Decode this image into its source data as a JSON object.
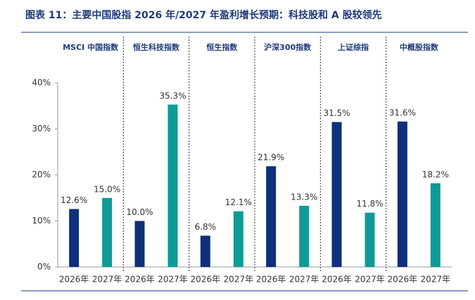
{
  "chart_data": {
    "type": "bar",
    "title": "图表 11：主要中国股指 2026 年/2027 年盈利增长预期：科技股和 A 股较领先",
    "categories": [
      "MSCI 中国指数",
      "恒生科技指数",
      "恒生指数",
      "沪深300指数",
      "上证综指",
      "中概股指数"
    ],
    "series": [
      {
        "name": "2026年",
        "color": "#102f7b",
        "values": [
          12.6,
          10.0,
          6.8,
          21.9,
          31.5,
          31.6
        ],
        "value_labels": [
          "12.6%",
          "10.0%",
          "6.8%",
          "21.9%",
          "31.5%",
          "31.6%"
        ]
      },
      {
        "name": "2027年",
        "color": "#0e9b97",
        "values": [
          15.0,
          35.3,
          12.1,
          13.3,
          11.8,
          18.2
        ],
        "value_labels": [
          "15.0%",
          "35.3%",
          "12.1%",
          "13.3%",
          "11.8%",
          "18.2%"
        ]
      }
    ],
    "ylim": [
      0,
      40
    ],
    "yticks": [
      {
        "value": 0,
        "label": "0%"
      },
      {
        "value": 10,
        "label": "10%"
      },
      {
        "value": 20,
        "label": "20%"
      },
      {
        "value": 30,
        "label": "30%"
      },
      {
        "value": 40,
        "label": "40%"
      }
    ]
  }
}
